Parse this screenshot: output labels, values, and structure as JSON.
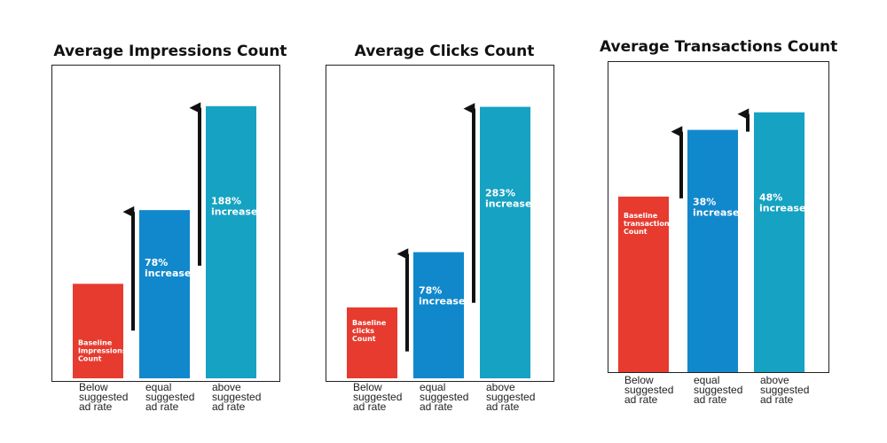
{
  "colors": {
    "baseline": "#e63b2e",
    "equal": "#1188cc",
    "above": "#16a2c2",
    "arrow": "#111111",
    "frame": "#222222"
  },
  "chart_data": [
    {
      "type": "bar",
      "title": "Average Impressions Count",
      "categories": [
        "Below suggested ad rate",
        "equal suggested ad rate",
        "above suggested ad rate"
      ],
      "category_lines": [
        [
          "Below",
          "suggested",
          "ad rate"
        ],
        [
          "equal",
          "suggested",
          "ad rate"
        ],
        [
          "above",
          "suggested",
          "ad rate"
        ]
      ],
      "values": [
        100,
        178,
        288
      ],
      "bar_labels": [
        [
          "Baseline",
          "Impressions",
          "Count"
        ],
        [
          "78%",
          "increase"
        ],
        [
          "188%",
          "increase"
        ]
      ],
      "ylim": [
        0,
        300
      ],
      "grid": false
    },
    {
      "type": "bar",
      "title": "Average Clicks Count",
      "categories": [
        "Below suggested ad rate",
        "equal suggested ad rate",
        "above suggested ad rate"
      ],
      "category_lines": [
        [
          "Below",
          "suggested",
          "ad rate"
        ],
        [
          "equal",
          "suggested",
          "ad rate"
        ],
        [
          "above",
          "suggested",
          "ad rate"
        ]
      ],
      "values": [
        100,
        178,
        383
      ],
      "bar_labels": [
        [
          "Baseline",
          "clicks",
          "Count"
        ],
        [
          "78%",
          "increase"
        ],
        [
          "283%",
          "increase"
        ]
      ],
      "ylim": [
        0,
        400
      ],
      "grid": false
    },
    {
      "type": "bar",
      "title": "Average Transactions Count",
      "categories": [
        "Below suggested ad rate",
        "equal suggested ad rate",
        "above suggested ad rate"
      ],
      "category_lines": [
        [
          "Below",
          "suggested",
          "ad rate"
        ],
        [
          "equal",
          "suggested",
          "ad rate"
        ],
        [
          "above",
          "suggested",
          "ad rate"
        ]
      ],
      "values": [
        100,
        138,
        148
      ],
      "bar_labels": [
        [
          "Baseline",
          "transactions",
          "Count"
        ],
        [
          "38%",
          "increase"
        ],
        [
          "48%",
          "increase"
        ]
      ],
      "ylim": [
        0,
        160
      ],
      "grid": false
    }
  ]
}
